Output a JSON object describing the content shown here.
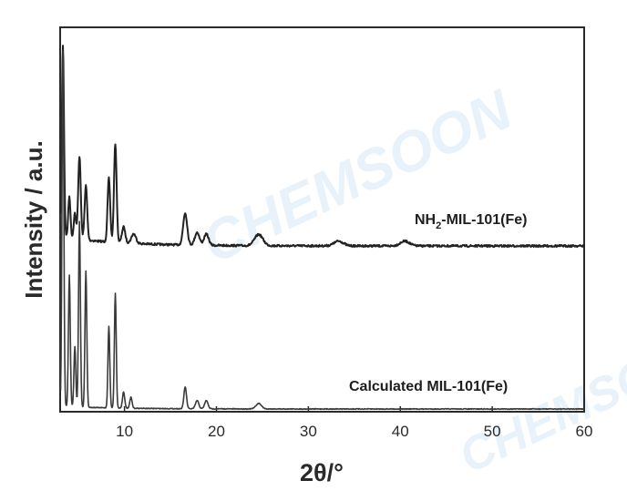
{
  "chart_data": {
    "type": "line",
    "title": "",
    "xlabel": "2θ/°",
    "ylabel": "Intensity / a.u.",
    "xlim": [
      3,
      60
    ],
    "x_ticks": [
      10,
      20,
      30,
      40,
      50,
      60
    ],
    "y_ticks_shown": false,
    "grid": false,
    "legend": "none",
    "series": [
      {
        "name": "NH2-MIL-101(Fe)",
        "label_main": "NH",
        "label_sub": "2",
        "label_rest": "-MIL-101(Fe)",
        "color": "#222222",
        "baseline": 0.06,
        "peaks": [
          {
            "x": 3.3,
            "h": 1.2,
            "w": 0.12
          },
          {
            "x": 4.0,
            "h": 0.26,
            "w": 0.12
          },
          {
            "x": 4.6,
            "h": 0.16,
            "w": 0.12
          },
          {
            "x": 5.1,
            "h": 0.52,
            "w": 0.14
          },
          {
            "x": 5.8,
            "h": 0.34,
            "w": 0.14
          },
          {
            "x": 8.3,
            "h": 0.4,
            "w": 0.14
          },
          {
            "x": 9.0,
            "h": 0.62,
            "w": 0.14
          },
          {
            "x": 9.9,
            "h": 0.1,
            "w": 0.18
          },
          {
            "x": 11.0,
            "h": 0.06,
            "w": 0.25
          },
          {
            "x": 16.6,
            "h": 0.2,
            "w": 0.22
          },
          {
            "x": 17.9,
            "h": 0.08,
            "w": 0.25
          },
          {
            "x": 18.9,
            "h": 0.07,
            "w": 0.25
          },
          {
            "x": 24.6,
            "h": 0.07,
            "w": 0.45
          },
          {
            "x": 33.3,
            "h": 0.03,
            "w": 0.5
          },
          {
            "x": 40.5,
            "h": 0.03,
            "w": 0.5
          }
        ]
      },
      {
        "name": "Calculated MIL-101(Fe)",
        "color": "#3a3a3a",
        "baseline": 0.01,
        "peaks": [
          {
            "x": 3.3,
            "h": 1.3,
            "w": 0.1
          },
          {
            "x": 4.0,
            "h": 0.48,
            "w": 0.1
          },
          {
            "x": 4.6,
            "h": 0.22,
            "w": 0.1
          },
          {
            "x": 5.1,
            "h": 0.68,
            "w": 0.1
          },
          {
            "x": 5.8,
            "h": 0.5,
            "w": 0.1
          },
          {
            "x": 8.3,
            "h": 0.3,
            "w": 0.1
          },
          {
            "x": 9.0,
            "h": 0.42,
            "w": 0.1
          },
          {
            "x": 9.9,
            "h": 0.06,
            "w": 0.12
          },
          {
            "x": 10.7,
            "h": 0.04,
            "w": 0.12
          },
          {
            "x": 16.6,
            "h": 0.08,
            "w": 0.14
          },
          {
            "x": 17.9,
            "h": 0.03,
            "w": 0.18
          },
          {
            "x": 18.9,
            "h": 0.03,
            "w": 0.18
          },
          {
            "x": 24.6,
            "h": 0.02,
            "w": 0.3
          }
        ]
      }
    ]
  },
  "watermark": {
    "text": "CHEMSOON",
    "color": "#d6e9f7"
  }
}
